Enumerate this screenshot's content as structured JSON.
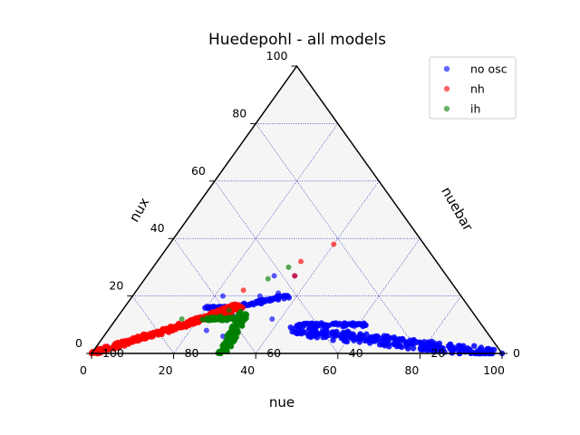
{
  "chart_data": {
    "type": "scatter",
    "subtype": "ternary",
    "title": "Huedepohl - all models",
    "axes": {
      "bottom": {
        "label": "nue",
        "ticks": [
          "0",
          "20",
          "40",
          "60",
          "80",
          "100"
        ]
      },
      "left": {
        "label": "nux",
        "ticks": [
          "100",
          "80",
          "60",
          "40",
          "20",
          "0"
        ]
      },
      "right": {
        "label": "nuebar",
        "ticks": [
          "0",
          "20",
          "40",
          "60",
          "80",
          "100"
        ]
      }
    },
    "grid": true,
    "grid_step": 20,
    "legend": {
      "position": "top-right"
    },
    "series": [
      {
        "name": "no osc",
        "color": "#0000ff",
        "clusters": [
          {
            "kind": "band",
            "from": [
              0.45,
              0.08,
              0.47
            ],
            "to": [
              0.98,
              0.0,
              0.02
            ],
            "width": 0.05,
            "count": 260
          },
          {
            "kind": "band",
            "from": [
              0.45,
              0.1,
              0.45
            ],
            "to": [
              0.62,
              0.1,
              0.28
            ],
            "width": 0.02,
            "count": 60
          },
          {
            "kind": "band",
            "from": [
              0.26,
              0.16,
              0.58
            ],
            "to": [
              0.38,
              0.2,
              0.42
            ],
            "width": 0.02,
            "count": 60
          },
          {
            "kind": "band",
            "from": [
              0.2,
              0.16,
              0.64
            ],
            "to": [
              0.26,
              0.16,
              0.58
            ],
            "width": 0.015,
            "count": 30
          },
          {
            "kind": "scatter",
            "points": [
              [
                0.31,
                0.27,
                0.42
              ],
              [
                0.31,
                0.2,
                0.49
              ],
              [
                0.38,
                0.12,
                0.5
              ],
              [
                0.28,
                0.13,
                0.59
              ],
              [
                0.35,
                0.21,
                0.44
              ],
              [
                0.36,
                0.27,
                0.37
              ],
              [
                0.22,
                0.2,
                0.58
              ],
              [
                0.29,
                0.06,
                0.65
              ],
              [
                0.24,
                0.08,
                0.68
              ]
            ]
          }
        ]
      },
      {
        "name": "nh",
        "color": "#ff0000",
        "clusters": [
          {
            "kind": "band",
            "from": [
              0.0,
              0.0,
              1.0
            ],
            "to": [
              0.28,
              0.16,
              0.56
            ],
            "width": 0.025,
            "count": 300
          },
          {
            "kind": "band",
            "from": [
              0.2,
              0.12,
              0.68
            ],
            "to": [
              0.27,
              0.17,
              0.56
            ],
            "width": 0.02,
            "count": 60
          },
          {
            "kind": "scatter",
            "points": [
              [
                0.4,
                0.38,
                0.22
              ],
              [
                0.35,
                0.32,
                0.33
              ],
              [
                0.36,
                0.27,
                0.37
              ],
              [
                0.26,
                0.22,
                0.52
              ]
            ]
          }
        ]
      },
      {
        "name": "ih",
        "color": "#008000",
        "clusters": [
          {
            "kind": "band",
            "from": [
              0.3,
              0.14,
              0.56
            ],
            "to": [
              0.32,
              0.0,
              0.68
            ],
            "width": 0.025,
            "count": 120
          },
          {
            "kind": "band",
            "from": [
              0.22,
              0.12,
              0.66
            ],
            "to": [
              0.31,
              0.12,
              0.57
            ],
            "width": 0.02,
            "count": 60
          },
          {
            "kind": "scatter",
            "points": [
              [
                0.33,
                0.3,
                0.37
              ],
              [
                0.3,
                0.26,
                0.44
              ],
              [
                0.16,
                0.12,
                0.72
              ],
              [
                0.26,
                0.15,
                0.59
              ],
              [
                0.25,
                0.13,
                0.62
              ]
            ]
          }
        ]
      }
    ]
  }
}
